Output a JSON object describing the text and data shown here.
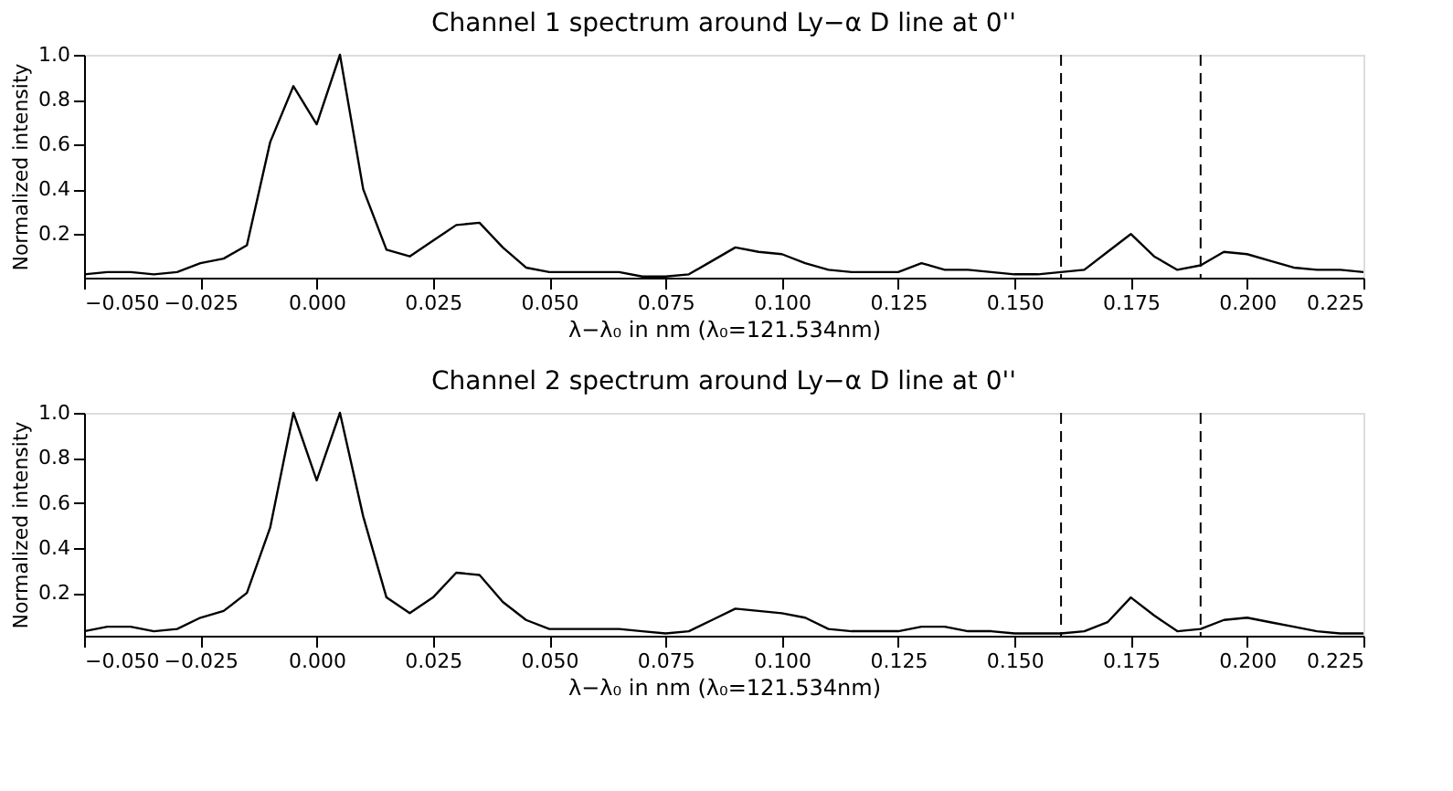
{
  "chart_data": [
    {
      "type": "line",
      "title": "Channel 1 spectrum around Ly−α D line at 0''",
      "xlabel": "λ−λ₀ in nm (λ₀=121.534nm)",
      "ylabel": "Normalized intensity",
      "x": [
        -0.05,
        -0.045,
        -0.04,
        -0.035,
        -0.03,
        -0.025,
        -0.02,
        -0.015,
        -0.01,
        -0.005,
        0,
        0.005,
        0.01,
        0.015,
        0.02,
        0.025,
        0.03,
        0.035,
        0.04,
        0.045,
        0.05,
        0.055,
        0.06,
        0.065,
        0.07,
        0.075,
        0.08,
        0.085,
        0.09,
        0.095,
        0.1,
        0.105,
        0.11,
        0.115,
        0.12,
        0.125,
        0.13,
        0.135,
        0.14,
        0.145,
        0.15,
        0.155,
        0.16,
        0.165,
        0.17,
        0.175,
        0.18,
        0.185,
        0.19,
        0.195,
        0.2,
        0.205,
        0.21,
        0.215,
        0.22,
        0.225
      ],
      "series": [
        {
          "color": "#000000",
          "values": [
            0.02,
            0.03,
            0.03,
            0.02,
            0.03,
            0.07,
            0.09,
            0.15,
            0.61,
            0.86,
            0.69,
            1.0,
            0.4,
            0.13,
            0.1,
            0.17,
            0.24,
            0.25,
            0.14,
            0.05,
            0.03,
            0.03,
            0.03,
            0.03,
            0.01,
            0.01,
            0.02,
            0.08,
            0.14,
            0.12,
            0.11,
            0.07,
            0.04,
            0.03,
            0.03,
            0.03,
            0.07,
            0.04,
            0.04,
            0.03,
            0.02,
            0.02,
            0.03,
            0.04,
            0.12,
            0.2,
            0.1,
            0.04,
            0.06,
            0.12,
            0.11,
            0.08,
            0.05,
            0.04,
            0.04,
            0.03
          ]
        }
      ],
      "xlim": [
        -0.05,
        0.225
      ],
      "xticks": [
        {
          "value": -0.05,
          "label": "−0.050"
        },
        {
          "value": -0.025,
          "label": "−0.025"
        },
        {
          "value": 0,
          "label": "0.000"
        },
        {
          "value": 0.025,
          "label": "0.025"
        },
        {
          "value": 0.05,
          "label": "0.050"
        },
        {
          "value": 0.075,
          "label": "0.075"
        },
        {
          "value": 0.1,
          "label": "0.100"
        },
        {
          "value": 0.125,
          "label": "0.125"
        },
        {
          "value": 0.15,
          "label": "0.150"
        },
        {
          "value": 0.175,
          "label": "0.175"
        },
        {
          "value": 0.2,
          "label": "0.200"
        },
        {
          "value": 0.225,
          "label": "0.225"
        }
      ],
      "ylim": [
        0.005,
        1.0
      ],
      "yticks": [
        0.2,
        0.4,
        0.6,
        0.8,
        {
          "value": 1.0,
          "label": "1.0"
        }
      ],
      "ref_lines": [
        {
          "axis": "x",
          "value": 0.16,
          "color": "#000000",
          "line_style": "dashed"
        },
        {
          "axis": "x",
          "value": 0.19,
          "color": "#000000",
          "line_style": "dashed"
        }
      ],
      "grid": false,
      "line_style": "solid",
      "marker": "none"
    },
    {
      "type": "line",
      "title": "Channel 2 spectrum around Ly−α D line at 0''",
      "xlabel": "λ−λ₀ in nm (λ₀=121.534nm)",
      "ylabel": "Normalized intensity",
      "x": [
        -0.05,
        -0.045,
        -0.04,
        -0.035,
        -0.03,
        -0.025,
        -0.02,
        -0.015,
        -0.01,
        -0.005,
        0,
        0.005,
        0.01,
        0.015,
        0.02,
        0.025,
        0.03,
        0.035,
        0.04,
        0.045,
        0.05,
        0.055,
        0.06,
        0.065,
        0.07,
        0.075,
        0.08,
        0.085,
        0.09,
        0.095,
        0.1,
        0.105,
        0.11,
        0.115,
        0.12,
        0.125,
        0.13,
        0.135,
        0.14,
        0.145,
        0.15,
        0.155,
        0.16,
        0.165,
        0.17,
        0.175,
        0.18,
        0.185,
        0.19,
        0.195,
        0.2,
        0.205,
        0.21,
        0.215,
        0.22,
        0.225
      ],
      "series": [
        {
          "color": "#000000",
          "values": [
            0.03,
            0.05,
            0.05,
            0.03,
            0.04,
            0.09,
            0.12,
            0.2,
            0.49,
            1.0,
            0.7,
            1.0,
            0.54,
            0.18,
            0.11,
            0.18,
            0.29,
            0.28,
            0.16,
            0.08,
            0.04,
            0.04,
            0.04,
            0.04,
            0.03,
            0.02,
            0.03,
            0.08,
            0.13,
            0.12,
            0.11,
            0.09,
            0.04,
            0.03,
            0.03,
            0.03,
            0.05,
            0.05,
            0.03,
            0.03,
            0.02,
            0.02,
            0.02,
            0.03,
            0.07,
            0.18,
            0.1,
            0.03,
            0.04,
            0.08,
            0.09,
            0.07,
            0.05,
            0.03,
            0.02,
            0.02
          ]
        }
      ],
      "xlim": [
        -0.05,
        0.225
      ],
      "xticks": [
        {
          "value": -0.05,
          "label": "−0.050"
        },
        {
          "value": -0.025,
          "label": "−0.025"
        },
        {
          "value": 0,
          "label": "0.000"
        },
        {
          "value": 0.025,
          "label": "0.025"
        },
        {
          "value": 0.05,
          "label": "0.050"
        },
        {
          "value": 0.075,
          "label": "0.075"
        },
        {
          "value": 0.1,
          "label": "0.100"
        },
        {
          "value": 0.125,
          "label": "0.125"
        },
        {
          "value": 0.15,
          "label": "0.150"
        },
        {
          "value": 0.175,
          "label": "0.175"
        },
        {
          "value": 0.2,
          "label": "0.200"
        },
        {
          "value": 0.225,
          "label": "0.225"
        }
      ],
      "ylim": [
        0.01,
        1.0
      ],
      "yticks": [
        0.2,
        0.4,
        0.6,
        0.8,
        {
          "value": 1.0,
          "label": "1.0"
        }
      ],
      "ref_lines": [
        {
          "axis": "x",
          "value": 0.16,
          "color": "#000000",
          "line_style": "dashed"
        },
        {
          "axis": "x",
          "value": 0.19,
          "color": "#000000",
          "line_style": "dashed"
        }
      ],
      "grid": false,
      "line_style": "solid",
      "marker": "none"
    }
  ]
}
